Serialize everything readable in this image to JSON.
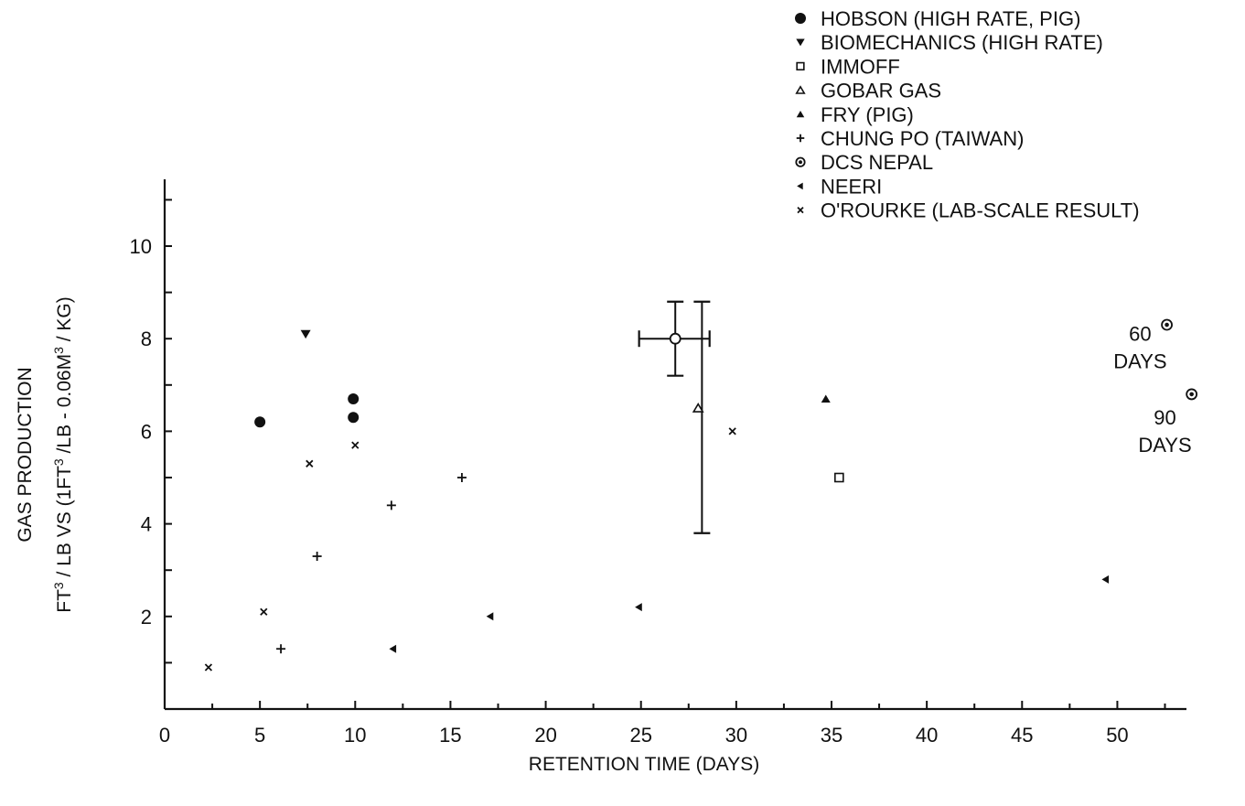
{
  "chart_data": {
    "type": "scatter",
    "xlabel": "RETENTION TIME (DAYS)",
    "ylabel_line1": "GAS PRODUCTION",
    "ylabel_line2_parts": [
      "FT",
      "3",
      " / LB VS (1FT",
      "3",
      " /LB - 0.06M",
      "3",
      " / KG)"
    ],
    "xlim": [
      0,
      54
    ],
    "ylim": [
      0,
      11.5
    ],
    "x_ticks": [
      0,
      5,
      10,
      15,
      20,
      25,
      30,
      35,
      40,
      45,
      50
    ],
    "y_ticks": [
      2,
      4,
      6,
      8,
      10
    ],
    "legend_position": "top-right",
    "series": [
      {
        "name": "HOBSON (HIGH RATE, PIG)",
        "marker": "filled-circle",
        "points": [
          [
            5.0,
            6.2
          ],
          [
            9.9,
            6.7
          ],
          [
            9.9,
            6.3
          ]
        ]
      },
      {
        "name": "BIOMECHANICS (HIGH RATE)",
        "marker": "filled-down-triangle",
        "points": [
          [
            7.4,
            8.1
          ]
        ]
      },
      {
        "name": "IMMOFF",
        "marker": "open-square",
        "points": [
          [
            35.4,
            5.0
          ]
        ]
      },
      {
        "name": "GOBAR GAS",
        "marker": "open-up-triangle",
        "points": [
          [
            28.0,
            6.5
          ]
        ]
      },
      {
        "name": "FRY (PIG)",
        "marker": "filled-up-triangle",
        "points": [
          [
            34.7,
            6.7
          ]
        ]
      },
      {
        "name": "CHUNG PO (TAIWAN)",
        "marker": "plus",
        "points": [
          [
            6.1,
            1.3
          ],
          [
            8.0,
            3.3
          ],
          [
            11.9,
            4.4
          ],
          [
            15.6,
            5.0
          ]
        ]
      },
      {
        "name": "DCS NEPAL",
        "marker": "dotted-circle",
        "points": [
          [
            52.6,
            8.3
          ],
          [
            53.9,
            6.8
          ]
        ]
      },
      {
        "name": "NEERI",
        "marker": "left-triangle",
        "points": [
          [
            12.0,
            1.3
          ],
          [
            17.1,
            2.0
          ],
          [
            24.9,
            2.2
          ],
          [
            49.4,
            2.8
          ]
        ]
      },
      {
        "name": "O'ROURKE (LAB-SCALE RESULT)",
        "marker": "x",
        "points": [
          [
            2.3,
            0.9
          ],
          [
            5.2,
            2.1
          ],
          [
            7.6,
            5.3
          ],
          [
            10.0,
            5.7
          ],
          [
            29.8,
            6.0
          ]
        ]
      }
    ],
    "extra_markers": [
      {
        "marker": "open-circle",
        "x": 26.8,
        "y": 8.0
      }
    ],
    "error_bars": [
      {
        "type": "vertical",
        "x": 26.8,
        "y_low": 7.2,
        "y_high": 8.8
      },
      {
        "type": "vertical",
        "x": 28.2,
        "y_low": 3.8,
        "y_high": 8.8
      },
      {
        "type": "horizontal",
        "y": 8.0,
        "x_low": 24.9,
        "x_high": 28.6
      }
    ],
    "annotations": [
      {
        "lines": [
          "60",
          "DAYS"
        ],
        "x": 51.2,
        "y": 7.95
      },
      {
        "lines": [
          "90",
          "DAYS"
        ],
        "x": 52.5,
        "y": 6.15
      }
    ]
  }
}
